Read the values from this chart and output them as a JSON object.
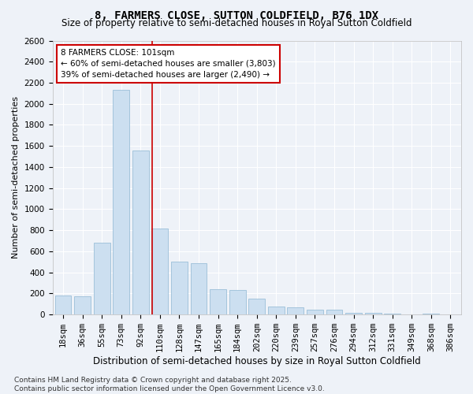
{
  "title": "8, FARMERS CLOSE, SUTTON COLDFIELD, B76 1DX",
  "subtitle": "Size of property relative to semi-detached houses in Royal Sutton Coldfield",
  "xlabel": "Distribution of semi-detached houses by size in Royal Sutton Coldfield",
  "ylabel": "Number of semi-detached properties",
  "categories": [
    "18sqm",
    "36sqm",
    "55sqm",
    "73sqm",
    "92sqm",
    "110sqm",
    "128sqm",
    "147sqm",
    "165sqm",
    "184sqm",
    "202sqm",
    "220sqm",
    "239sqm",
    "257sqm",
    "276sqm",
    "294sqm",
    "312sqm",
    "331sqm",
    "349sqm",
    "368sqm",
    "386sqm"
  ],
  "values": [
    180,
    175,
    680,
    2130,
    1560,
    820,
    500,
    490,
    240,
    235,
    150,
    80,
    72,
    48,
    48,
    18,
    18,
    9,
    4,
    9,
    4
  ],
  "bar_color": "#ccdff0",
  "bar_edge_color": "#9bbfd8",
  "red_line_color": "#cc0000",
  "red_line_x": 4.6,
  "annotation_text": "8 FARMERS CLOSE: 101sqm\n← 60% of semi-detached houses are smaller (3,803)\n39% of semi-detached houses are larger (2,490) →",
  "annotation_box_facecolor": "#ffffff",
  "annotation_box_edgecolor": "#cc0000",
  "ylim": [
    0,
    2600
  ],
  "yticks": [
    0,
    200,
    400,
    600,
    800,
    1000,
    1200,
    1400,
    1600,
    1800,
    2000,
    2200,
    2400,
    2600
  ],
  "background_color": "#eef2f8",
  "grid_color": "#ffffff",
  "footer_text": "Contains HM Land Registry data © Crown copyright and database right 2025.\nContains public sector information licensed under the Open Government Licence v3.0.",
  "title_fontsize": 10,
  "subtitle_fontsize": 8.5,
  "xlabel_fontsize": 8.5,
  "ylabel_fontsize": 8,
  "tick_fontsize": 7.5,
  "annotation_fontsize": 7.5,
  "footer_fontsize": 6.5
}
